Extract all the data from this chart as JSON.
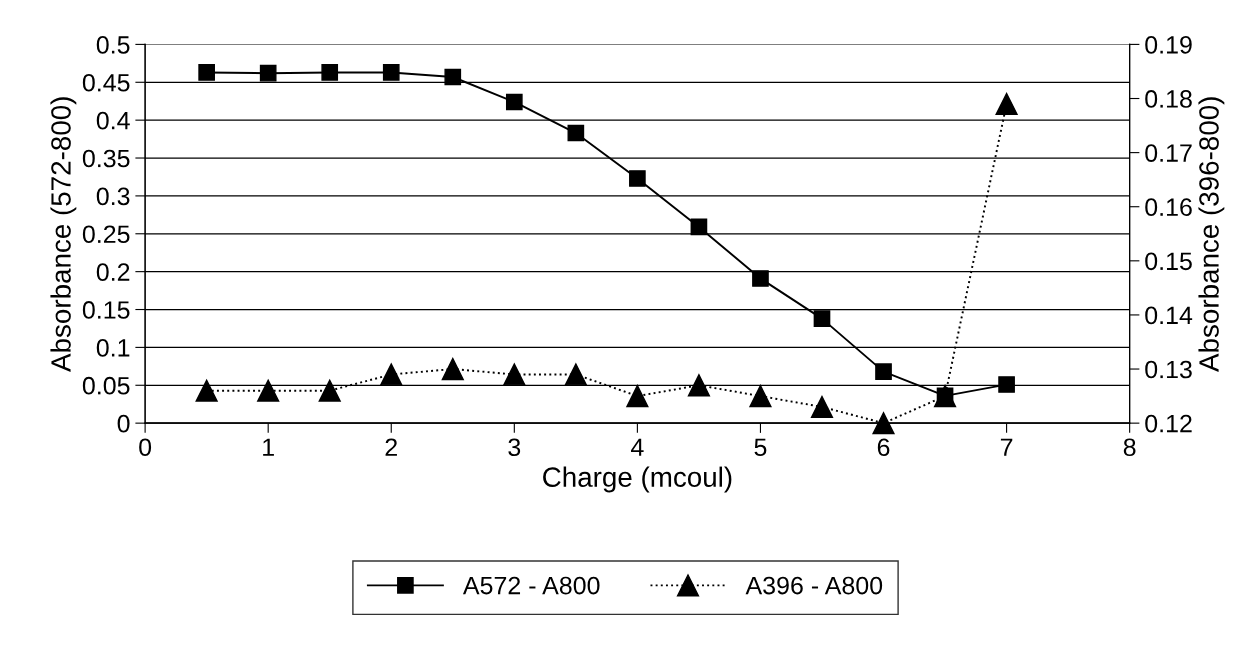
{
  "chart_data": {
    "type": "line",
    "xlabel": "Charge (mcoul)",
    "ylabel": "Absorbance (572-800)",
    "y2label": "Absorbance (396-800)",
    "x": [
      0.5,
      1,
      1.5,
      2,
      2.5,
      3,
      3.5,
      4,
      4.5,
      5,
      5.5,
      6,
      6.5,
      7
    ],
    "series": [
      {
        "name": "A572 - A800",
        "color": "#000000",
        "marker": "square",
        "line_style": "solid",
        "values": [
          0.463,
          0.462,
          0.463,
          0.463,
          0.457,
          0.424,
          0.383,
          0.323,
          0.259,
          0.191,
          0.138,
          0.068,
          0.036,
          0.051
        ]
      },
      {
        "name": "A396 - A800",
        "color": "#000000",
        "marker": "triangle",
        "line_style": "dotted",
        "axis": "y2",
        "values": [
          0.126,
          0.126,
          0.126,
          0.129,
          0.13,
          0.129,
          0.129,
          0.125,
          0.127,
          0.125,
          0.123,
          0.12,
          0.125,
          0.179
        ]
      }
    ],
    "xlim": [
      0,
      8
    ],
    "xticks": [
      0,
      1,
      2,
      3,
      4,
      5,
      6,
      7,
      8
    ],
    "ylim": [
      0,
      0.5
    ],
    "yticks": [
      0,
      0.05,
      0.1,
      0.15,
      0.2,
      0.25,
      0.3,
      0.35,
      0.4,
      0.45,
      0.5
    ],
    "y2lim": [
      0.12,
      0.19
    ],
    "y2ticks": [
      0.12,
      0.13,
      0.14,
      0.15,
      0.16,
      0.17,
      0.18,
      0.19
    ],
    "grid": "y",
    "legend": "bottom"
  }
}
